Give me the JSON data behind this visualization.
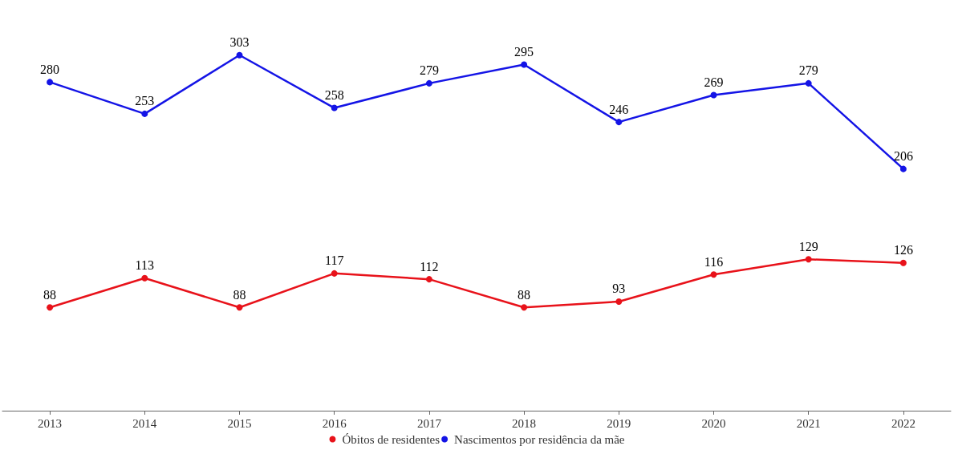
{
  "chart_data": {
    "type": "line",
    "categories": [
      "2013",
      "2014",
      "2015",
      "2016",
      "2017",
      "2018",
      "2019",
      "2020",
      "2021",
      "2022"
    ],
    "series": [
      {
        "name": "Óbitos de residentes",
        "color": "#e8121a",
        "values": [
          88,
          113,
          88,
          117,
          112,
          88,
          93,
          116,
          129,
          126
        ]
      },
      {
        "name": "Nascimentos por residência da mãe",
        "color": "#1414e6",
        "values": [
          280,
          253,
          303,
          258,
          279,
          295,
          246,
          269,
          279,
          206
        ]
      }
    ],
    "data_labels": true,
    "legend": "bottom",
    "marker": "circle"
  }
}
